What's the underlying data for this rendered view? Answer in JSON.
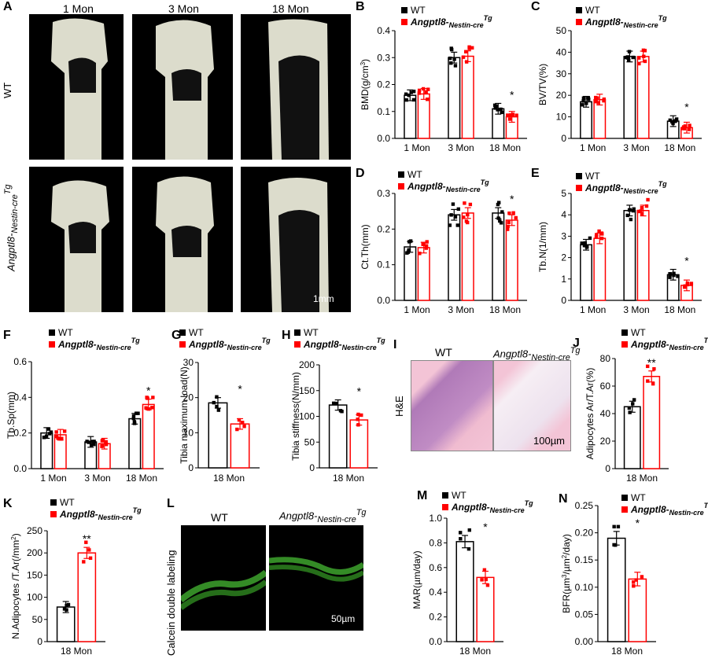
{
  "panel_letters": {
    "A": "A",
    "B": "B",
    "C": "C",
    "D": "D",
    "E": "E",
    "F": "F",
    "G": "G",
    "H": "H",
    "I": "I",
    "J": "J",
    "K": "K",
    "L": "L",
    "M": "M",
    "N": "N"
  },
  "microct": {
    "columns": [
      "1 Mon",
      "3 Mon",
      "18 Mon"
    ],
    "rows": [
      "WT",
      "Angptl8-Nestin-creTg"
    ],
    "scalebar": "1mm"
  },
  "histology": {
    "stain_label": "H&E",
    "titles": [
      "WT",
      "Angptl8-Nestin-creTg"
    ],
    "scalebar": "100µm"
  },
  "calcein": {
    "ylabel": "Calcein double labeling",
    "titles": [
      "WT",
      "Angptl8-Nestin-creTg"
    ],
    "scalebar": "50µm"
  },
  "legend": {
    "wt": "WT",
    "tg_main": "Angptl8-",
    "tg_sub": "Nestin-cre",
    "tg_sup": "Tg"
  },
  "colors": {
    "wt": "#000000",
    "tg": "#ff0000"
  },
  "chart_data": [
    {
      "id": "B",
      "type": "bar",
      "categories": [
        "1 Mon",
        "3 Mon",
        "18 Mon"
      ],
      "series": [
        {
          "name": "WT",
          "values": [
            0.16,
            0.3,
            0.11
          ]
        },
        {
          "name": "Angptl8-Nestin-creTg",
          "values": [
            0.165,
            0.305,
            0.08
          ]
        }
      ],
      "ylabel": "BMD(g/cm3)",
      "ylim": [
        0,
        0.4
      ],
      "yticks": [
        0,
        0.1,
        0.2,
        0.3,
        0.4
      ],
      "annotations": [
        "",
        "",
        "*"
      ]
    },
    {
      "id": "C",
      "type": "bar",
      "categories": [
        "1 Mon",
        "3 Mon",
        "18 Mon"
      ],
      "series": [
        {
          "name": "WT",
          "values": [
            17,
            38,
            8
          ]
        },
        {
          "name": "Angptl8-Nestin-creTg",
          "values": [
            18,
            38,
            5
          ]
        }
      ],
      "ylabel": "BV/TV(%)",
      "ylim": [
        0,
        50
      ],
      "yticks": [
        0,
        10,
        20,
        30,
        40,
        50
      ],
      "annotations": [
        "",
        "",
        "*"
      ]
    },
    {
      "id": "D",
      "type": "bar",
      "categories": [
        "1 Mon",
        "3 Mon",
        "18 Mon"
      ],
      "series": [
        {
          "name": "WT",
          "values": [
            0.15,
            0.24,
            0.245
          ]
        },
        {
          "name": "Angptl8-Nestin-creTg",
          "values": [
            0.148,
            0.245,
            0.225
          ]
        }
      ],
      "ylabel": "Ct.Th(mm)",
      "ylim": [
        0,
        0.3
      ],
      "yticks": [
        0,
        0.1,
        0.2,
        0.3
      ],
      "annotations": [
        "",
        "",
        "*"
      ]
    },
    {
      "id": "E",
      "type": "bar",
      "categories": [
        "1 Mon",
        "3 Mon",
        "18 Mon"
      ],
      "series": [
        {
          "name": "WT",
          "values": [
            2.6,
            4.2,
            1.2
          ]
        },
        {
          "name": "Angptl8-Nestin-creTg",
          "values": [
            2.9,
            4.2,
            0.7
          ]
        }
      ],
      "ylabel": "Tb.N(1/mm)",
      "ylim": [
        0,
        5
      ],
      "yticks": [
        0,
        1,
        2,
        3,
        4,
        5
      ],
      "annotations": [
        "",
        "",
        "*"
      ]
    },
    {
      "id": "F",
      "type": "bar",
      "categories": [
        "1 Mon",
        "3 Mon",
        "18 Mon"
      ],
      "series": [
        {
          "name": "WT",
          "values": [
            0.2,
            0.15,
            0.28
          ]
        },
        {
          "name": "Angptl8-Nestin-creTg",
          "values": [
            0.19,
            0.14,
            0.36
          ]
        }
      ],
      "ylabel": "Tb.Sp(mm)",
      "ylim": [
        0,
        0.6
      ],
      "yticks": [
        0,
        0.2,
        0.4,
        0.6
      ],
      "annotations": [
        "",
        "",
        "*"
      ]
    },
    {
      "id": "G",
      "type": "bar",
      "categories": [
        "18 Mon"
      ],
      "series": [
        {
          "name": "WT",
          "values": [
            18.5
          ]
        },
        {
          "name": "Angptl8-Nestin-creTg",
          "values": [
            12.5
          ]
        }
      ],
      "ylabel": "Tibia maximum load(N)",
      "ylim": [
        0,
        30
      ],
      "yticks": [
        0,
        10,
        20,
        30
      ],
      "annotations": [
        "*"
      ]
    },
    {
      "id": "H",
      "type": "bar",
      "categories": [
        "18 Mon"
      ],
      "series": [
        {
          "name": "WT",
          "values": [
            122
          ]
        },
        {
          "name": "Angptl8-Nestin-creTg",
          "values": [
            93
          ]
        }
      ],
      "ylabel": "Tibia stiffness(N/mm)",
      "ylim": [
        0,
        200
      ],
      "yticks": [
        0,
        50,
        100,
        150,
        200
      ],
      "annotations": [
        "*"
      ]
    },
    {
      "id": "J",
      "type": "bar",
      "categories": [
        "18 Mon"
      ],
      "series": [
        {
          "name": "WT",
          "values": [
            45
          ]
        },
        {
          "name": "Angptl8-Nestin-creTg",
          "values": [
            67
          ]
        }
      ],
      "ylabel": "Adipocytes Ar/T.Ar(%)",
      "ylim": [
        0,
        80
      ],
      "yticks": [
        0,
        20,
        40,
        60,
        80
      ],
      "annotations": [
        "**"
      ]
    },
    {
      "id": "K",
      "type": "bar",
      "categories": [
        "18 Mon"
      ],
      "series": [
        {
          "name": "WT",
          "values": [
            78
          ]
        },
        {
          "name": "Angptl8-Nestin-creTg",
          "values": [
            200
          ]
        }
      ],
      "ylabel": "N.Adipocytes /T.Ar(/mm2)",
      "ylim": [
        0,
        250
      ],
      "yticks": [
        0,
        50,
        100,
        150,
        200,
        250
      ],
      "annotations": [
        "**"
      ]
    },
    {
      "id": "M",
      "type": "bar",
      "categories": [
        "18 Mon"
      ],
      "series": [
        {
          "name": "WT",
          "values": [
            0.81
          ]
        },
        {
          "name": "Angptl8-Nestin-creTg",
          "values": [
            0.52
          ]
        }
      ],
      "ylabel": "MAR(µm/day)",
      "ylim": [
        0,
        1.0
      ],
      "yticks": [
        0,
        0.2,
        0.4,
        0.6,
        0.8,
        1.0
      ],
      "annotations": [
        "*"
      ]
    },
    {
      "id": "N",
      "type": "bar",
      "categories": [
        "18 Mon"
      ],
      "series": [
        {
          "name": "WT",
          "values": [
            0.19
          ]
        },
        {
          "name": "Angptl8-Nestin-creTg",
          "values": [
            0.115
          ]
        }
      ],
      "ylabel": "BFR(µm3/µm2/day)",
      "ylim": [
        0,
        0.25
      ],
      "yticks": [
        0,
        0.05,
        0.1,
        0.15,
        0.2,
        0.25
      ],
      "annotations": [
        "*"
      ]
    }
  ]
}
